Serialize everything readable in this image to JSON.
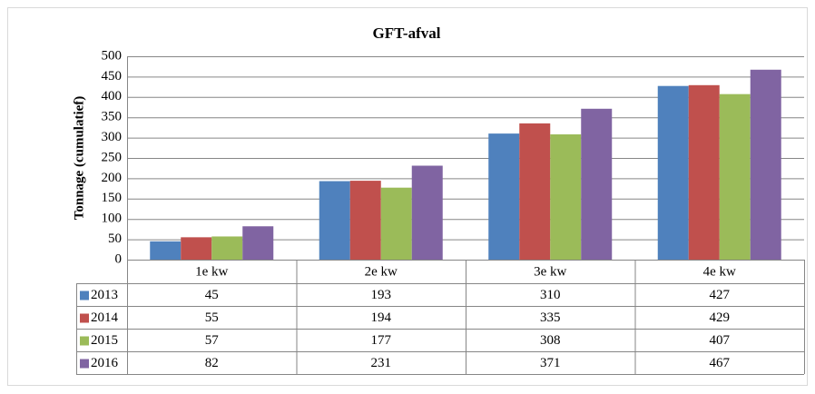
{
  "chart_data": {
    "type": "bar",
    "title": "GFT-afval",
    "y_label": "Tonnage (cumulatief)",
    "categories": [
      "1e kw",
      "2e kw",
      "3e kw",
      "4e kw"
    ],
    "series": [
      {
        "name": "2013",
        "color": "#4f81bd",
        "values": [
          45,
          193,
          310,
          427
        ]
      },
      {
        "name": "2014",
        "color": "#c0504d",
        "values": [
          55,
          194,
          335,
          429
        ]
      },
      {
        "name": "2015",
        "color": "#9bbb59",
        "values": [
          57,
          177,
          308,
          407
        ]
      },
      {
        "name": "2016",
        "color": "#8064a2",
        "values": [
          82,
          231,
          371,
          467
        ]
      }
    ],
    "ylim": [
      0,
      500
    ],
    "yticks": [
      0,
      50,
      100,
      150,
      200,
      250,
      300,
      350,
      400,
      450,
      500
    ],
    "grid": true
  }
}
